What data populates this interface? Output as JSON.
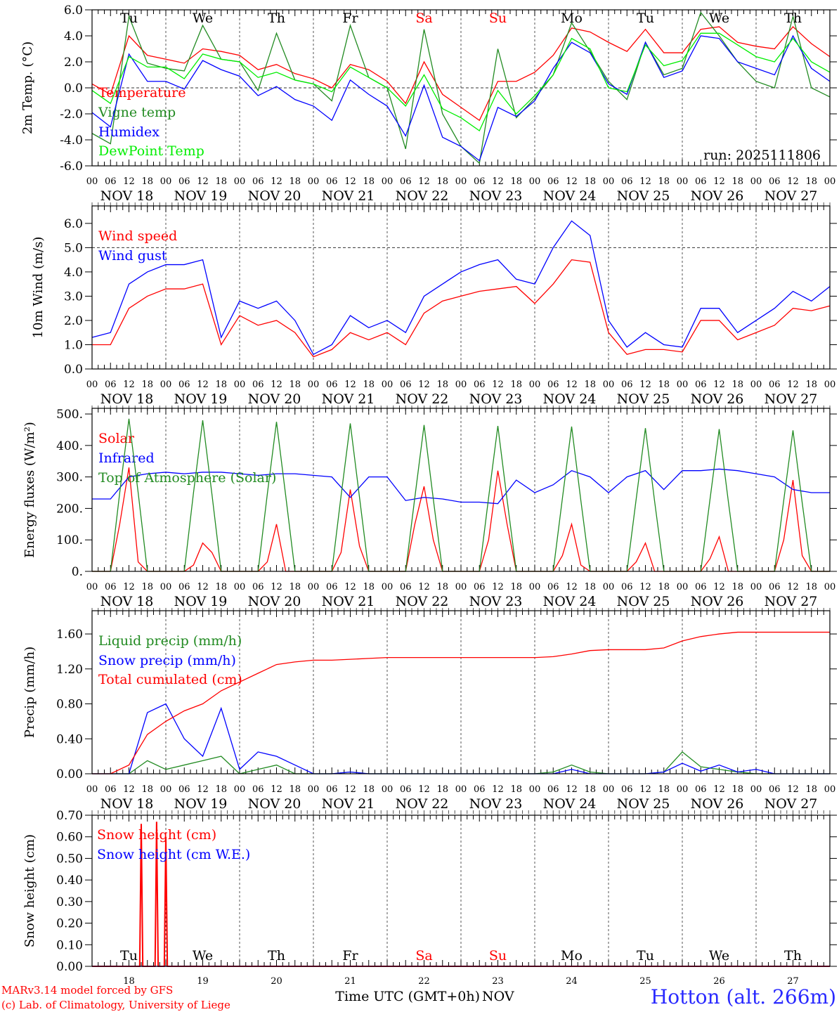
{
  "x_axis": {
    "hours_total": 240,
    "hour_labels": [
      "00",
      "06",
      "12",
      "18"
    ],
    "day_labels": [
      "NOV 18",
      "NOV 19",
      "NOV 20",
      "NOV 21",
      "NOV 22",
      "NOV 23",
      "NOV 24",
      "NOV 25",
      "NOV 26",
      "NOV 27"
    ],
    "weekdays": [
      "Tu",
      "We",
      "Th",
      "Fr",
      "Sa",
      "Su",
      "Mo",
      "Tu",
      "We",
      "Th"
    ],
    "weekday_colors": [
      "#000000",
      "#000000",
      "#000000",
      "#000000",
      "#ff0000",
      "#ff0000",
      "#000000",
      "#000000",
      "#000000",
      "#000000"
    ],
    "day_numbers": [
      "18",
      "19",
      "20",
      "21",
      "22",
      "23",
      "24",
      "25",
      "26",
      "27"
    ],
    "xlabel": "Time UTC (GMT+0h)",
    "month": "NOV"
  },
  "run_label": "run: 2025111806",
  "credits": [
    "MARv3.14 model forced by GFS",
    "(c) Lab. of Climatology, University of Liege"
  ],
  "station": "Hotton (alt. 266m)",
  "colors": {
    "credits": "#ff0000",
    "station": "#2a2aff"
  },
  "chart_data": [
    {
      "type": "line",
      "ylabel": "2m Temp. (°C)",
      "ylim": [
        -6,
        6
      ],
      "yticks": [
        "6.0",
        "4.0",
        "2.0",
        "0.0",
        "-2.0",
        "-4.0",
        "-6.0"
      ],
      "ref_line": 0,
      "series": [
        {
          "name": "Temperature",
          "color": "#ff0000",
          "step_h": 6,
          "values": [
            0.3,
            -0.5,
            4.0,
            2.5,
            2.2,
            1.9,
            3.0,
            2.8,
            2.5,
            1.4,
            1.8,
            1.1,
            0.7,
            0.0,
            1.8,
            1.4,
            0.5,
            -1.2,
            2.0,
            -0.5,
            -1.5,
            -2.5,
            0.5,
            0.5,
            1.2,
            2.5,
            4.6,
            4.3,
            3.5,
            2.8,
            4.5,
            2.7,
            2.7,
            4.5,
            4.7,
            3.5,
            3.2,
            3.0,
            4.7,
            3.4,
            2.4
          ]
        },
        {
          "name": "Vigne temp",
          "color": "#228b22",
          "step_h": 6,
          "values": [
            -3.5,
            -4.3,
            5.5,
            1.9,
            1.5,
            1.3,
            4.8,
            2.2,
            2.0,
            -0.2,
            4.2,
            0.6,
            0.3,
            -1.0,
            4.8,
            0.8,
            0.0,
            -4.7,
            4.5,
            -2.0,
            -4.5,
            -5.8,
            3.0,
            -2.3,
            -0.8,
            1.0,
            5.0,
            2.8,
            0.5,
            -0.9,
            3.5,
            1.0,
            1.5,
            5.8,
            4.0,
            2.0,
            0.5,
            0.0,
            5.5,
            0.0,
            -0.7
          ]
        },
        {
          "name": "Humidex",
          "color": "#0000ff",
          "step_h": 6,
          "values": [
            -1.9,
            -3.0,
            2.6,
            0.5,
            0.5,
            -0.1,
            2.1,
            1.4,
            0.9,
            -0.6,
            0.1,
            -0.9,
            -1.4,
            -2.5,
            0.6,
            -0.5,
            -1.4,
            -3.7,
            0.2,
            -3.8,
            -4.5,
            -5.6,
            -1.5,
            -2.2,
            -1.0,
            1.5,
            3.5,
            2.7,
            0.3,
            -0.5,
            3.5,
            0.8,
            1.3,
            4.0,
            3.8,
            2.0,
            1.5,
            1.0,
            4.0,
            1.5,
            0.5
          ]
        },
        {
          "name": "DewPoint Temp",
          "color": "#00ee00",
          "step_h": 6,
          "values": [
            -0.2,
            -1.2,
            2.4,
            1.6,
            1.6,
            0.7,
            2.6,
            2.2,
            2.0,
            0.8,
            1.2,
            0.6,
            0.3,
            -0.3,
            1.6,
            0.8,
            0.0,
            -1.4,
            1.0,
            -1.6,
            -2.3,
            -3.3,
            -0.2,
            -2.0,
            -0.6,
            1.0,
            3.8,
            3.0,
            0.0,
            -0.3,
            3.3,
            1.7,
            2.1,
            4.2,
            4.2,
            3.3,
            2.4,
            2.0,
            3.8,
            2.0,
            1.2
          ]
        }
      ]
    },
    {
      "type": "line",
      "ylabel": "10m Wind (m/s)",
      "ylim": [
        0,
        6.72
      ],
      "yticks": [
        "6.0",
        "5.0",
        "4.0",
        "3.0",
        "2.0",
        "1.0",
        "0.0"
      ],
      "ref_line": 5,
      "series": [
        {
          "name": "Wind speed",
          "color": "#ff0000",
          "step_h": 6,
          "values": [
            1.0,
            1.0,
            2.5,
            3.0,
            3.3,
            3.3,
            3.5,
            1.0,
            2.2,
            1.8,
            2.0,
            1.5,
            0.5,
            0.8,
            1.5,
            1.2,
            1.5,
            1.0,
            2.3,
            2.8,
            3.0,
            3.2,
            3.3,
            3.4,
            2.7,
            3.5,
            4.5,
            4.4,
            1.5,
            0.6,
            0.8,
            0.8,
            0.7,
            2.0,
            2.0,
            1.2,
            1.5,
            1.8,
            2.5,
            2.4,
            2.6
          ]
        },
        {
          "name": "Wind gust",
          "color": "#0000ff",
          "step_h": 6,
          "values": [
            1.3,
            1.5,
            3.5,
            4.0,
            4.3,
            4.3,
            4.5,
            1.3,
            2.8,
            2.5,
            2.8,
            2.0,
            0.6,
            1.0,
            2.2,
            1.7,
            2.0,
            1.5,
            3.0,
            3.5,
            4.0,
            4.3,
            4.5,
            3.7,
            3.5,
            5.0,
            6.1,
            5.5,
            2.0,
            0.9,
            1.5,
            1.0,
            0.9,
            2.5,
            2.5,
            1.5,
            2.0,
            2.5,
            3.2,
            2.8,
            3.4
          ]
        }
      ]
    },
    {
      "type": "line",
      "ylabel": "Energy fluxes (W/m²)",
      "ylim": [
        0,
        518
      ],
      "yticks": [
        "500.",
        "400.",
        "300.",
        "200.",
        "100.",
        "0."
      ],
      "ref_line": null,
      "series": [
        {
          "name": "Solar",
          "color": "#ff0000",
          "step_h": 3,
          "values": [
            0,
            0,
            0,
            150,
            330,
            30,
            0,
            0,
            0,
            0,
            0,
            20,
            90,
            60,
            0,
            0,
            0,
            0,
            0,
            30,
            150,
            0,
            0,
            0,
            0,
            0,
            0,
            60,
            260,
            80,
            0,
            0,
            0,
            0,
            0,
            150,
            270,
            100,
            0,
            0,
            0,
            0,
            0,
            100,
            320,
            150,
            0,
            0,
            0,
            0,
            0,
            50,
            150,
            20,
            0,
            0,
            0,
            0,
            0,
            30,
            90,
            0,
            0,
            0,
            0,
            0,
            0,
            40,
            110,
            0,
            0,
            0,
            0,
            0,
            0,
            100,
            290,
            50,
            0,
            0,
            0
          ]
        },
        {
          "name": "Infrared",
          "color": "#0000ff",
          "step_h": 6,
          "values": [
            230,
            230,
            300,
            310,
            315,
            310,
            315,
            315,
            310,
            305,
            310,
            310,
            305,
            300,
            235,
            300,
            300,
            225,
            235,
            230,
            220,
            220,
            215,
            290,
            250,
            275,
            320,
            300,
            250,
            300,
            320,
            260,
            320,
            320,
            325,
            320,
            310,
            300,
            260,
            250,
            250
          ]
        },
        {
          "name": "Top of Atmosphere (Solar)",
          "color": "#228b22",
          "step_h": 3,
          "values": [
            0,
            0,
            0,
            250,
            485,
            250,
            0,
            0,
            0,
            0,
            0,
            250,
            480,
            245,
            0,
            0,
            0,
            0,
            0,
            245,
            475,
            240,
            0,
            0,
            0,
            0,
            0,
            240,
            470,
            235,
            0,
            0,
            0,
            0,
            0,
            235,
            465,
            230,
            0,
            0,
            0,
            0,
            0,
            235,
            462,
            228,
            0,
            0,
            0,
            0,
            0,
            232,
            460,
            225,
            0,
            0,
            0,
            0,
            0,
            230,
            455,
            222,
            0,
            0,
            0,
            0,
            0,
            228,
            452,
            220,
            0,
            0,
            0,
            0,
            0,
            226,
            448,
            218,
            0,
            0,
            0
          ]
        }
      ]
    },
    {
      "type": "line",
      "ylabel": "Precip (mm/h)",
      "ylim": [
        0,
        1.866
      ],
      "yticks": [
        "1.60",
        "1.20",
        "0.80",
        "0.40",
        "0.00"
      ],
      "ref_line": null,
      "series": [
        {
          "name": "Liquid precip (mm/h)",
          "color": "#228b22",
          "step_h": 6,
          "values": [
            0,
            0,
            0,
            0.15,
            0.05,
            0.1,
            0.15,
            0.2,
            0,
            0.05,
            0.1,
            0,
            0,
            0,
            0.02,
            0,
            0,
            0,
            0,
            0,
            0,
            0,
            0,
            0,
            0,
            0.02,
            0.1,
            0.02,
            0,
            0,
            0,
            0.02,
            0.25,
            0.08,
            0.05,
            0.02,
            0,
            0,
            0,
            0,
            0
          ]
        },
        {
          "name": "Snow precip (mm/h)",
          "color": "#0000ff",
          "step_h": 6,
          "values": [
            0,
            0,
            0,
            0.7,
            0.8,
            0.4,
            0.2,
            0.75,
            0.05,
            0.25,
            0.2,
            0.1,
            0,
            0,
            0.02,
            0,
            0,
            0,
            0,
            0,
            0,
            0,
            0,
            0,
            0,
            0,
            0.05,
            0,
            0,
            0,
            0,
            0.02,
            0.12,
            0.03,
            0.1,
            0.02,
            0.05,
            0,
            0,
            0,
            0
          ]
        },
        {
          "name": "Total cumulated (cm)",
          "color": "#ff0000",
          "step_h": 6,
          "values": [
            0,
            0,
            0.1,
            0.45,
            0.6,
            0.72,
            0.8,
            0.95,
            1.05,
            1.15,
            1.25,
            1.28,
            1.3,
            1.3,
            1.31,
            1.32,
            1.33,
            1.33,
            1.33,
            1.33,
            1.33,
            1.33,
            1.33,
            1.33,
            1.33,
            1.34,
            1.37,
            1.41,
            1.42,
            1.42,
            1.42,
            1.44,
            1.52,
            1.57,
            1.6,
            1.62,
            1.62,
            1.62,
            1.62,
            1.62,
            1.62
          ]
        }
      ]
    },
    {
      "type": "line",
      "ylabel": "Snow height (cm)",
      "ylim": [
        0,
        0.7
      ],
      "yticks": [
        "0.70",
        "0.60",
        "0.50",
        "0.40",
        "0.30",
        "0.20",
        "0.10",
        "0.00"
      ],
      "ref_line": null,
      "series": [
        {
          "name": "Snow height (cm)",
          "color": "#ff0000",
          "points": [
            [
              0,
              0
            ],
            [
              15.5,
              0
            ],
            [
              16,
              0.66
            ],
            [
              16.5,
              0
            ],
            [
              20.5,
              0
            ],
            [
              21,
              0.67
            ],
            [
              21.5,
              0
            ],
            [
              23.5,
              0
            ],
            [
              24,
              0.6
            ],
            [
              24.5,
              0
            ],
            [
              240,
              0
            ]
          ]
        },
        {
          "name": "Snow height (cm W.E.)",
          "color": "#0000ff",
          "points": [
            [
              0,
              0
            ],
            [
              240,
              0
            ]
          ]
        }
      ]
    }
  ]
}
